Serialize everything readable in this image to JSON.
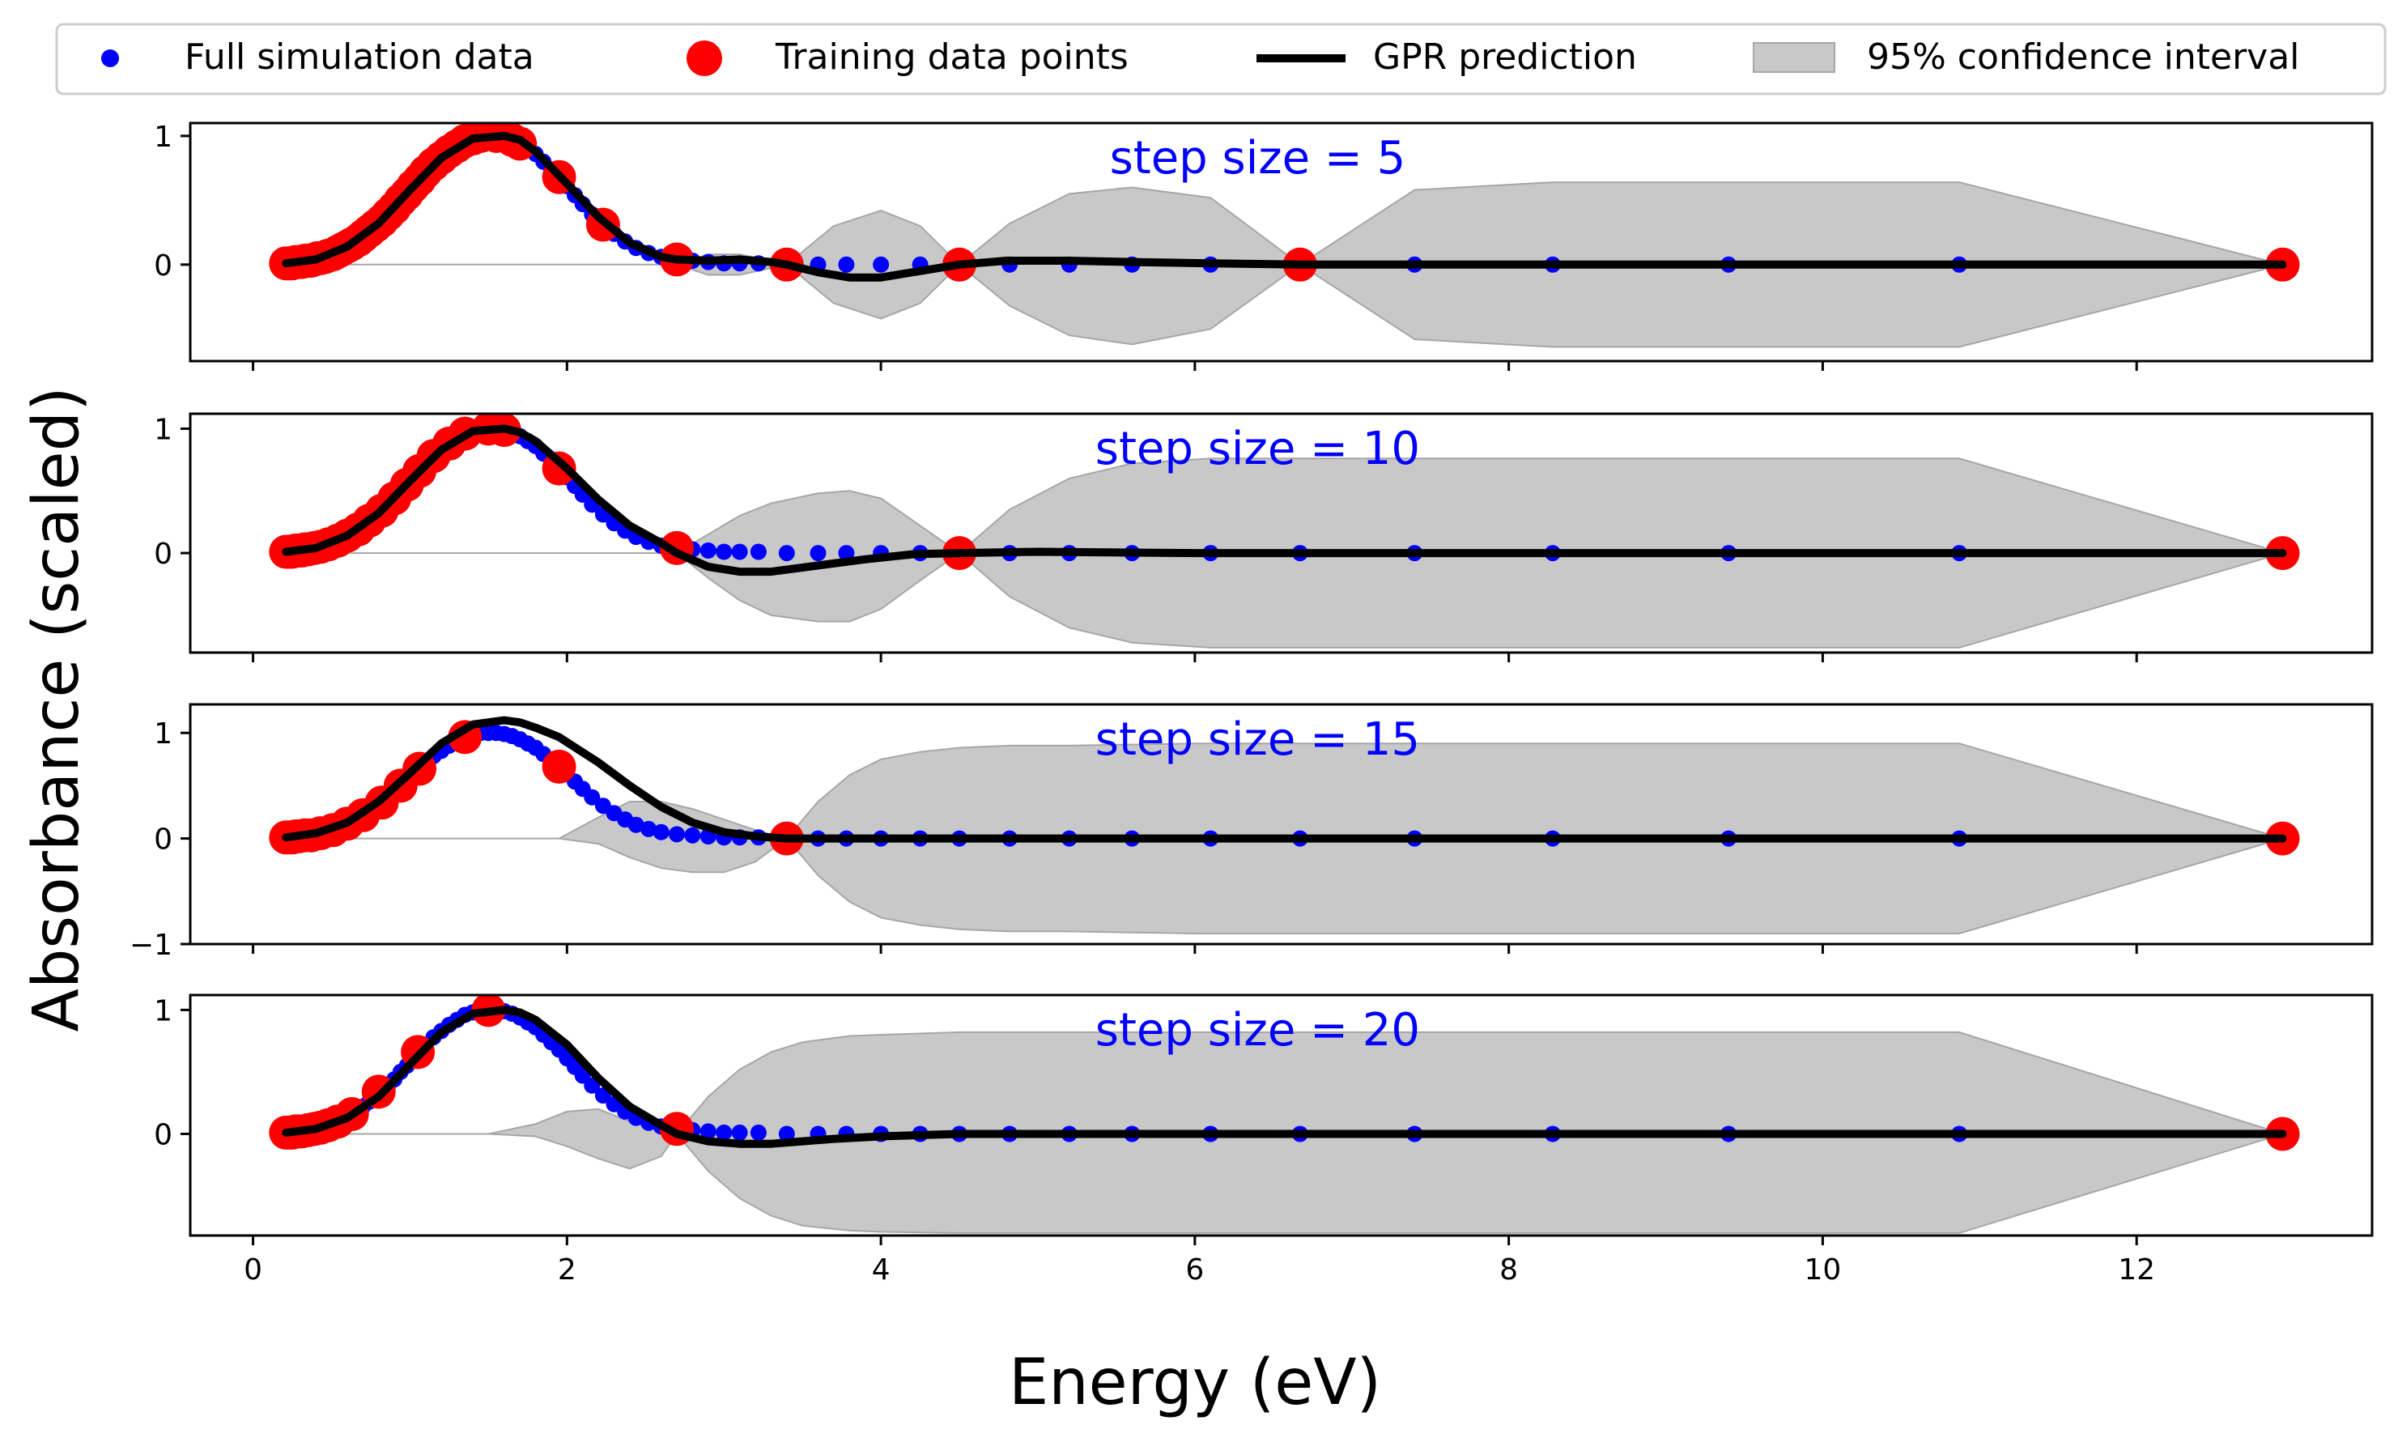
{
  "chart_data": {
    "type": "line",
    "xlabel": "Energy (eV)",
    "ylabel": "Absorbance (scaled)",
    "xlim": [
      -0.4,
      13.5
    ],
    "x_ticks": [
      0,
      2,
      4,
      6,
      8,
      10,
      12
    ],
    "x_tick_labels": [
      "0",
      "2",
      "4",
      "6",
      "8",
      "10",
      "12"
    ],
    "grid": false,
    "legend": {
      "placement": "top",
      "entries": [
        {
          "label": "Full simulation data",
          "marker": "small-dot",
          "color": "#0000ff"
        },
        {
          "label": "Training data points",
          "marker": "large-dot",
          "color": "#ff0000"
        },
        {
          "label": "GPR prediction",
          "marker": "line",
          "color": "#000000"
        },
        {
          "label": "95% confidence interval",
          "marker": "patch",
          "color": "#c8c8c8"
        }
      ]
    },
    "colors": {
      "simulation": "#0000ff",
      "training": "#ff0000",
      "prediction": "#000000",
      "confidence": "#c8c8c8"
    },
    "full_simulation_data": {
      "x": [
        0.21,
        0.23,
        0.25,
        0.27,
        0.29,
        0.31,
        0.33,
        0.35,
        0.37,
        0.39,
        0.41,
        0.43,
        0.46,
        0.48,
        0.51,
        0.54,
        0.57,
        0.6,
        0.63,
        0.67,
        0.7,
        0.74,
        0.78,
        0.82,
        0.86,
        0.9,
        0.94,
        0.98,
        1.02,
        1.06,
        1.1,
        1.15,
        1.2,
        1.25,
        1.3,
        1.35,
        1.4,
        1.45,
        1.5,
        1.55,
        1.6,
        1.65,
        1.7,
        1.75,
        1.8,
        1.85,
        1.9,
        1.95,
        2.0,
        2.05,
        2.1,
        2.16,
        2.23,
        2.3,
        2.37,
        2.44,
        2.52,
        2.6,
        2.7,
        2.8,
        2.9,
        3.0,
        3.1,
        3.22,
        3.4,
        3.6,
        3.78,
        4.0,
        4.25,
        4.5,
        4.82,
        5.2,
        5.6,
        6.1,
        6.67,
        7.4,
        8.28,
        9.4,
        10.87,
        12.93
      ],
      "y": [
        0.01,
        0.01,
        0.01,
        0.02,
        0.02,
        0.02,
        0.03,
        0.03,
        0.03,
        0.04,
        0.05,
        0.05,
        0.06,
        0.07,
        0.08,
        0.1,
        0.12,
        0.14,
        0.16,
        0.19,
        0.22,
        0.26,
        0.3,
        0.34,
        0.39,
        0.44,
        0.5,
        0.55,
        0.61,
        0.66,
        0.72,
        0.78,
        0.83,
        0.88,
        0.92,
        0.96,
        0.98,
        1.0,
        1.0,
        1.0,
        0.99,
        0.97,
        0.94,
        0.9,
        0.86,
        0.8,
        0.74,
        0.68,
        0.61,
        0.54,
        0.47,
        0.39,
        0.31,
        0.24,
        0.18,
        0.13,
        0.09,
        0.06,
        0.04,
        0.03,
        0.02,
        0.01,
        0.01,
        0.01,
        0.0,
        0.0,
        0.0,
        0.0,
        0.0,
        0.0,
        0.0,
        0.0,
        0.0,
        0.0,
        0.0,
        0.0,
        0.0,
        0.0,
        0.0,
        0.0
      ]
    },
    "panels": [
      {
        "label": "step size = 5",
        "ylim": [
          -0.75,
          1.1
        ],
        "y_ticks": [
          0,
          1
        ],
        "y_tick_labels": [
          "0",
          "1"
        ],
        "training_x": [
          0.21,
          0.23,
          0.25,
          0.27,
          0.29,
          0.31,
          0.33,
          0.35,
          0.37,
          0.39,
          0.41,
          0.43,
          0.46,
          0.48,
          0.51,
          0.54,
          0.57,
          0.6,
          0.63,
          0.67,
          0.7,
          0.74,
          0.78,
          0.82,
          0.86,
          0.9,
          0.94,
          0.98,
          1.02,
          1.06,
          1.1,
          1.15,
          1.2,
          1.25,
          1.3,
          1.35,
          1.4,
          1.45,
          1.55,
          1.65,
          1.7,
          1.95,
          2.23,
          2.7,
          3.4,
          4.5,
          6.67,
          12.93
        ],
        "prediction": {
          "x": [
            0.21,
            0.4,
            0.6,
            0.8,
            1.0,
            1.2,
            1.4,
            1.6,
            1.7,
            1.8,
            2.0,
            2.2,
            2.4,
            2.6,
            2.7,
            2.9,
            3.1,
            3.3,
            3.4,
            3.6,
            3.8,
            4.0,
            4.2,
            4.5,
            4.8,
            5.2,
            5.6,
            6.1,
            6.67,
            8.0,
            10.0,
            12.93
          ],
          "y": [
            0.01,
            0.04,
            0.14,
            0.32,
            0.58,
            0.83,
            0.98,
            1.0,
            0.97,
            0.88,
            0.63,
            0.37,
            0.17,
            0.06,
            0.04,
            0.03,
            0.04,
            0.02,
            0.0,
            -0.06,
            -0.1,
            -0.1,
            -0.06,
            0.0,
            0.03,
            0.03,
            0.02,
            0.01,
            0.0,
            0.0,
            0.0,
            0.0
          ]
        },
        "confidence_interval": {
          "x": [
            0.21,
            2.7,
            2.9,
            3.1,
            3.4,
            3.7,
            4.0,
            4.25,
            4.5,
            4.82,
            5.2,
            5.6,
            6.1,
            6.67,
            7.4,
            8.28,
            9.4,
            10.87,
            12.93
          ],
          "lower": [
            0.0,
            0.0,
            -0.08,
            -0.08,
            0.0,
            -0.3,
            -0.42,
            -0.3,
            0.0,
            -0.32,
            -0.55,
            -0.62,
            -0.5,
            0.0,
            -0.58,
            -0.64,
            -0.64,
            -0.64,
            0.0
          ],
          "upper": [
            0.0,
            0.0,
            0.08,
            0.08,
            0.0,
            0.3,
            0.42,
            0.3,
            0.0,
            0.32,
            0.55,
            0.6,
            0.52,
            0.0,
            0.58,
            0.64,
            0.64,
            0.64,
            0.0
          ]
        }
      },
      {
        "label": "step size = 10",
        "ylim": [
          -0.8,
          1.12
        ],
        "y_ticks": [
          0,
          1
        ],
        "y_tick_labels": [
          "0",
          "1"
        ],
        "training_x": [
          0.21,
          0.23,
          0.25,
          0.27,
          0.29,
          0.31,
          0.33,
          0.35,
          0.39,
          0.43,
          0.48,
          0.54,
          0.6,
          0.67,
          0.74,
          0.82,
          0.9,
          0.98,
          1.06,
          1.15,
          1.25,
          1.35,
          1.5,
          1.6,
          1.95,
          2.7,
          4.5,
          12.93
        ],
        "prediction": {
          "x": [
            0.21,
            0.4,
            0.6,
            0.8,
            1.0,
            1.2,
            1.4,
            1.6,
            1.7,
            1.8,
            2.0,
            2.2,
            2.4,
            2.6,
            2.7,
            2.9,
            3.1,
            3.3,
            3.6,
            3.9,
            4.2,
            4.5,
            5.0,
            6.0,
            8.0,
            10.0,
            12.93
          ],
          "y": [
            0.01,
            0.04,
            0.14,
            0.32,
            0.58,
            0.83,
            0.98,
            1.0,
            0.97,
            0.9,
            0.68,
            0.43,
            0.22,
            0.08,
            0.0,
            -0.11,
            -0.15,
            -0.15,
            -0.1,
            -0.05,
            -0.01,
            0.0,
            0.01,
            0.0,
            0.0,
            0.0,
            0.0
          ]
        },
        "confidence_interval": {
          "x": [
            0.21,
            2.7,
            2.9,
            3.1,
            3.3,
            3.6,
            3.8,
            4.0,
            4.25,
            4.5,
            4.82,
            5.2,
            5.6,
            6.1,
            6.67,
            7.4,
            8.28,
            9.4,
            10.87,
            12.93
          ],
          "lower": [
            0.0,
            0.0,
            -0.2,
            -0.38,
            -0.5,
            -0.55,
            -0.55,
            -0.45,
            -0.22,
            0.0,
            -0.35,
            -0.6,
            -0.72,
            -0.76,
            -0.76,
            -0.76,
            -0.76,
            -0.76,
            -0.76,
            0.0
          ],
          "upper": [
            0.0,
            0.0,
            0.15,
            0.3,
            0.4,
            0.48,
            0.5,
            0.44,
            0.22,
            0.0,
            0.35,
            0.6,
            0.72,
            0.76,
            0.76,
            0.76,
            0.76,
            0.76,
            0.76,
            0.0
          ]
        }
      },
      {
        "label": "step size = 15",
        "ylim": [
          -1.0,
          1.27
        ],
        "y_ticks": [
          -1,
          0,
          1
        ],
        "y_tick_labels": [
          "−1",
          "0",
          "1"
        ],
        "training_x": [
          0.21,
          0.23,
          0.25,
          0.27,
          0.29,
          0.33,
          0.37,
          0.43,
          0.51,
          0.6,
          0.7,
          0.82,
          0.94,
          1.06,
          1.35,
          1.95,
          3.4,
          12.93
        ],
        "prediction": {
          "x": [
            0.21,
            0.4,
            0.6,
            0.8,
            1.0,
            1.2,
            1.4,
            1.6,
            1.7,
            1.8,
            1.95,
            2.2,
            2.4,
            2.6,
            2.8,
            3.0,
            3.2,
            3.4,
            4.0,
            6.0,
            8.0,
            10.0,
            12.93
          ],
          "y": [
            0.01,
            0.05,
            0.15,
            0.35,
            0.62,
            0.9,
            1.08,
            1.12,
            1.1,
            1.05,
            0.96,
            0.72,
            0.5,
            0.3,
            0.15,
            0.06,
            0.02,
            0.0,
            0.0,
            0.0,
            0.0,
            0.0,
            0.0
          ]
        },
        "confidence_interval": {
          "x": [
            0.21,
            1.95,
            2.2,
            2.4,
            2.6,
            2.8,
            3.0,
            3.2,
            3.4,
            3.6,
            3.8,
            4.0,
            4.25,
            4.5,
            4.82,
            5.2,
            6.0,
            7.4,
            8.28,
            9.4,
            10.87,
            12.93
          ],
          "lower": [
            0.0,
            0.0,
            -0.05,
            -0.18,
            -0.28,
            -0.32,
            -0.32,
            -0.22,
            0.0,
            -0.35,
            -0.6,
            -0.75,
            -0.82,
            -0.86,
            -0.88,
            -0.88,
            -0.9,
            -0.9,
            -0.9,
            -0.9,
            -0.9,
            0.0
          ],
          "upper": [
            0.0,
            0.0,
            0.2,
            0.35,
            0.35,
            0.28,
            0.18,
            0.08,
            0.0,
            0.35,
            0.6,
            0.75,
            0.82,
            0.86,
            0.88,
            0.88,
            0.9,
            0.9,
            0.9,
            0.9,
            0.9,
            0.0
          ]
        }
      },
      {
        "label": "step size = 20",
        "ylim": [
          -0.82,
          1.12
        ],
        "y_ticks": [
          0,
          1
        ],
        "y_tick_labels": [
          "0",
          "1"
        ],
        "training_x": [
          0.21,
          0.23,
          0.25,
          0.27,
          0.29,
          0.31,
          0.35,
          0.39,
          0.43,
          0.48,
          0.54,
          0.63,
          0.8,
          1.05,
          1.5,
          2.7,
          12.93
        ],
        "prediction": {
          "x": [
            0.21,
            0.4,
            0.6,
            0.8,
            1.0,
            1.2,
            1.4,
            1.6,
            1.7,
            1.8,
            2.0,
            2.2,
            2.4,
            2.6,
            2.7,
            2.9,
            3.1,
            3.3,
            3.5,
            3.7,
            4.0,
            4.5,
            5.0,
            6.0,
            8.0,
            10.0,
            12.93
          ],
          "y": [
            0.01,
            0.04,
            0.13,
            0.3,
            0.56,
            0.82,
            0.97,
            1.0,
            0.98,
            0.92,
            0.72,
            0.45,
            0.22,
            0.07,
            0.0,
            -0.06,
            -0.08,
            -0.08,
            -0.06,
            -0.04,
            -0.02,
            0.0,
            0.0,
            0.0,
            0.0,
            0.0,
            0.0
          ]
        },
        "confidence_interval": {
          "x": [
            0.21,
            1.5,
            1.8,
            2.0,
            2.2,
            2.4,
            2.6,
            2.7,
            2.9,
            3.1,
            3.3,
            3.5,
            3.8,
            4.0,
            4.5,
            5.2,
            6.0,
            8.0,
            10.87,
            12.93
          ],
          "lower": [
            0.0,
            0.0,
            -0.02,
            -0.1,
            -0.2,
            -0.28,
            -0.18,
            0.0,
            -0.3,
            -0.52,
            -0.66,
            -0.74,
            -0.78,
            -0.79,
            -0.8,
            -0.8,
            -0.8,
            -0.8,
            -0.8,
            0.0
          ],
          "upper": [
            0.0,
            0.0,
            0.08,
            0.18,
            0.2,
            0.1,
            0.03,
            0.0,
            0.3,
            0.52,
            0.66,
            0.74,
            0.79,
            0.8,
            0.82,
            0.82,
            0.82,
            0.82,
            0.82,
            0.0
          ]
        }
      }
    ]
  }
}
